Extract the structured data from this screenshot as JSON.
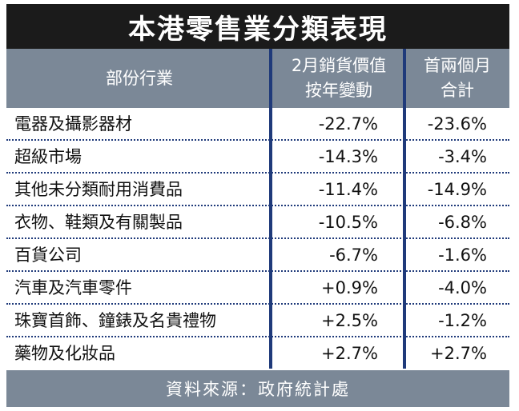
{
  "title": "本港零售業分類表現",
  "headers": {
    "category": "部份行業",
    "feb_line1": "2月銷貨價值",
    "feb_line2": "按年變動",
    "two_month_line1": "首兩個月",
    "two_month_line2": "合計"
  },
  "rows": [
    {
      "name": "電器及攝影器材",
      "feb": "-22.7%",
      "two_month": "-23.6%"
    },
    {
      "name": "超級市場",
      "feb": "-14.3%",
      "two_month": "-3.4%"
    },
    {
      "name": "其他未分類耐用消費品",
      "feb": "-11.4%",
      "two_month": "-14.9%"
    },
    {
      "name": "衣物、鞋類及有關製品",
      "feb": "-10.5%",
      "two_month": "-6.8%"
    },
    {
      "name": "百貨公司",
      "feb": "-6.7%",
      "two_month": "-1.6%"
    },
    {
      "name": "汽車及汽車零件",
      "feb": "+0.9%",
      "two_month": "-4.0%"
    },
    {
      "name": "珠寶首飾、鐘錶及名貴禮物",
      "feb": "+2.5%",
      "two_month": "-1.2%"
    },
    {
      "name": "藥物及化妝品",
      "feb": "+2.7%",
      "two_month": "+2.7%"
    }
  ],
  "source": "資料來源：政府統計處",
  "colors": {
    "title_bg": "#1b1b1b",
    "header_bg": "#7b8897",
    "separator": "#1f3a7a"
  }
}
